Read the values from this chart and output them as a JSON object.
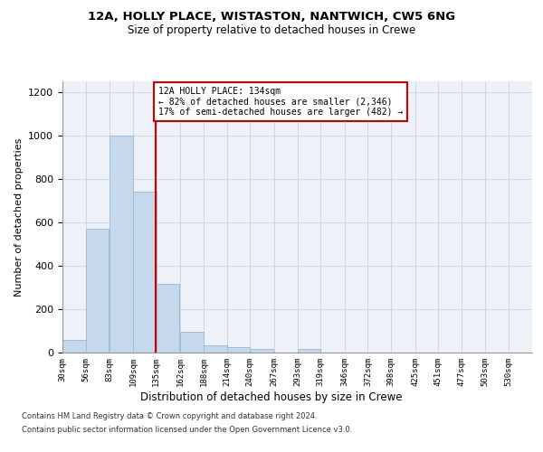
{
  "title1": "12A, HOLLY PLACE, WISTASTON, NANTWICH, CW5 6NG",
  "title2": "Size of property relative to detached houses in Crewe",
  "xlabel": "Distribution of detached houses by size in Crewe",
  "ylabel": "Number of detached properties",
  "bar_edges": [
    30,
    56,
    83,
    109,
    135,
    162,
    188,
    214,
    240,
    267,
    293,
    319,
    346,
    372,
    398,
    425,
    451,
    477,
    503,
    530,
    556
  ],
  "bar_heights": [
    60,
    570,
    1000,
    740,
    315,
    95,
    35,
    25,
    15,
    0,
    15,
    0,
    0,
    0,
    0,
    0,
    0,
    0,
    0,
    0
  ],
  "bar_color": "#c5d8ec",
  "bar_edgecolor": "#a0bcd6",
  "grid_color": "#d0d8e8",
  "vline_x": 134,
  "vline_color": "#cc0000",
  "annotation_line1": "12A HOLLY PLACE: 134sqm",
  "annotation_line2": "← 82% of detached houses are smaller (2,346)",
  "annotation_line3": "17% of semi-detached houses are larger (482) →",
  "annotation_box_color": "#cc0000",
  "ylim": [
    0,
    1250
  ],
  "yticks": [
    0,
    200,
    400,
    600,
    800,
    1000,
    1200
  ],
  "footer1": "Contains HM Land Registry data © Crown copyright and database right 2024.",
  "footer2": "Contains public sector information licensed under the Open Government Licence v3.0.",
  "bg_color": "#eef2f8"
}
